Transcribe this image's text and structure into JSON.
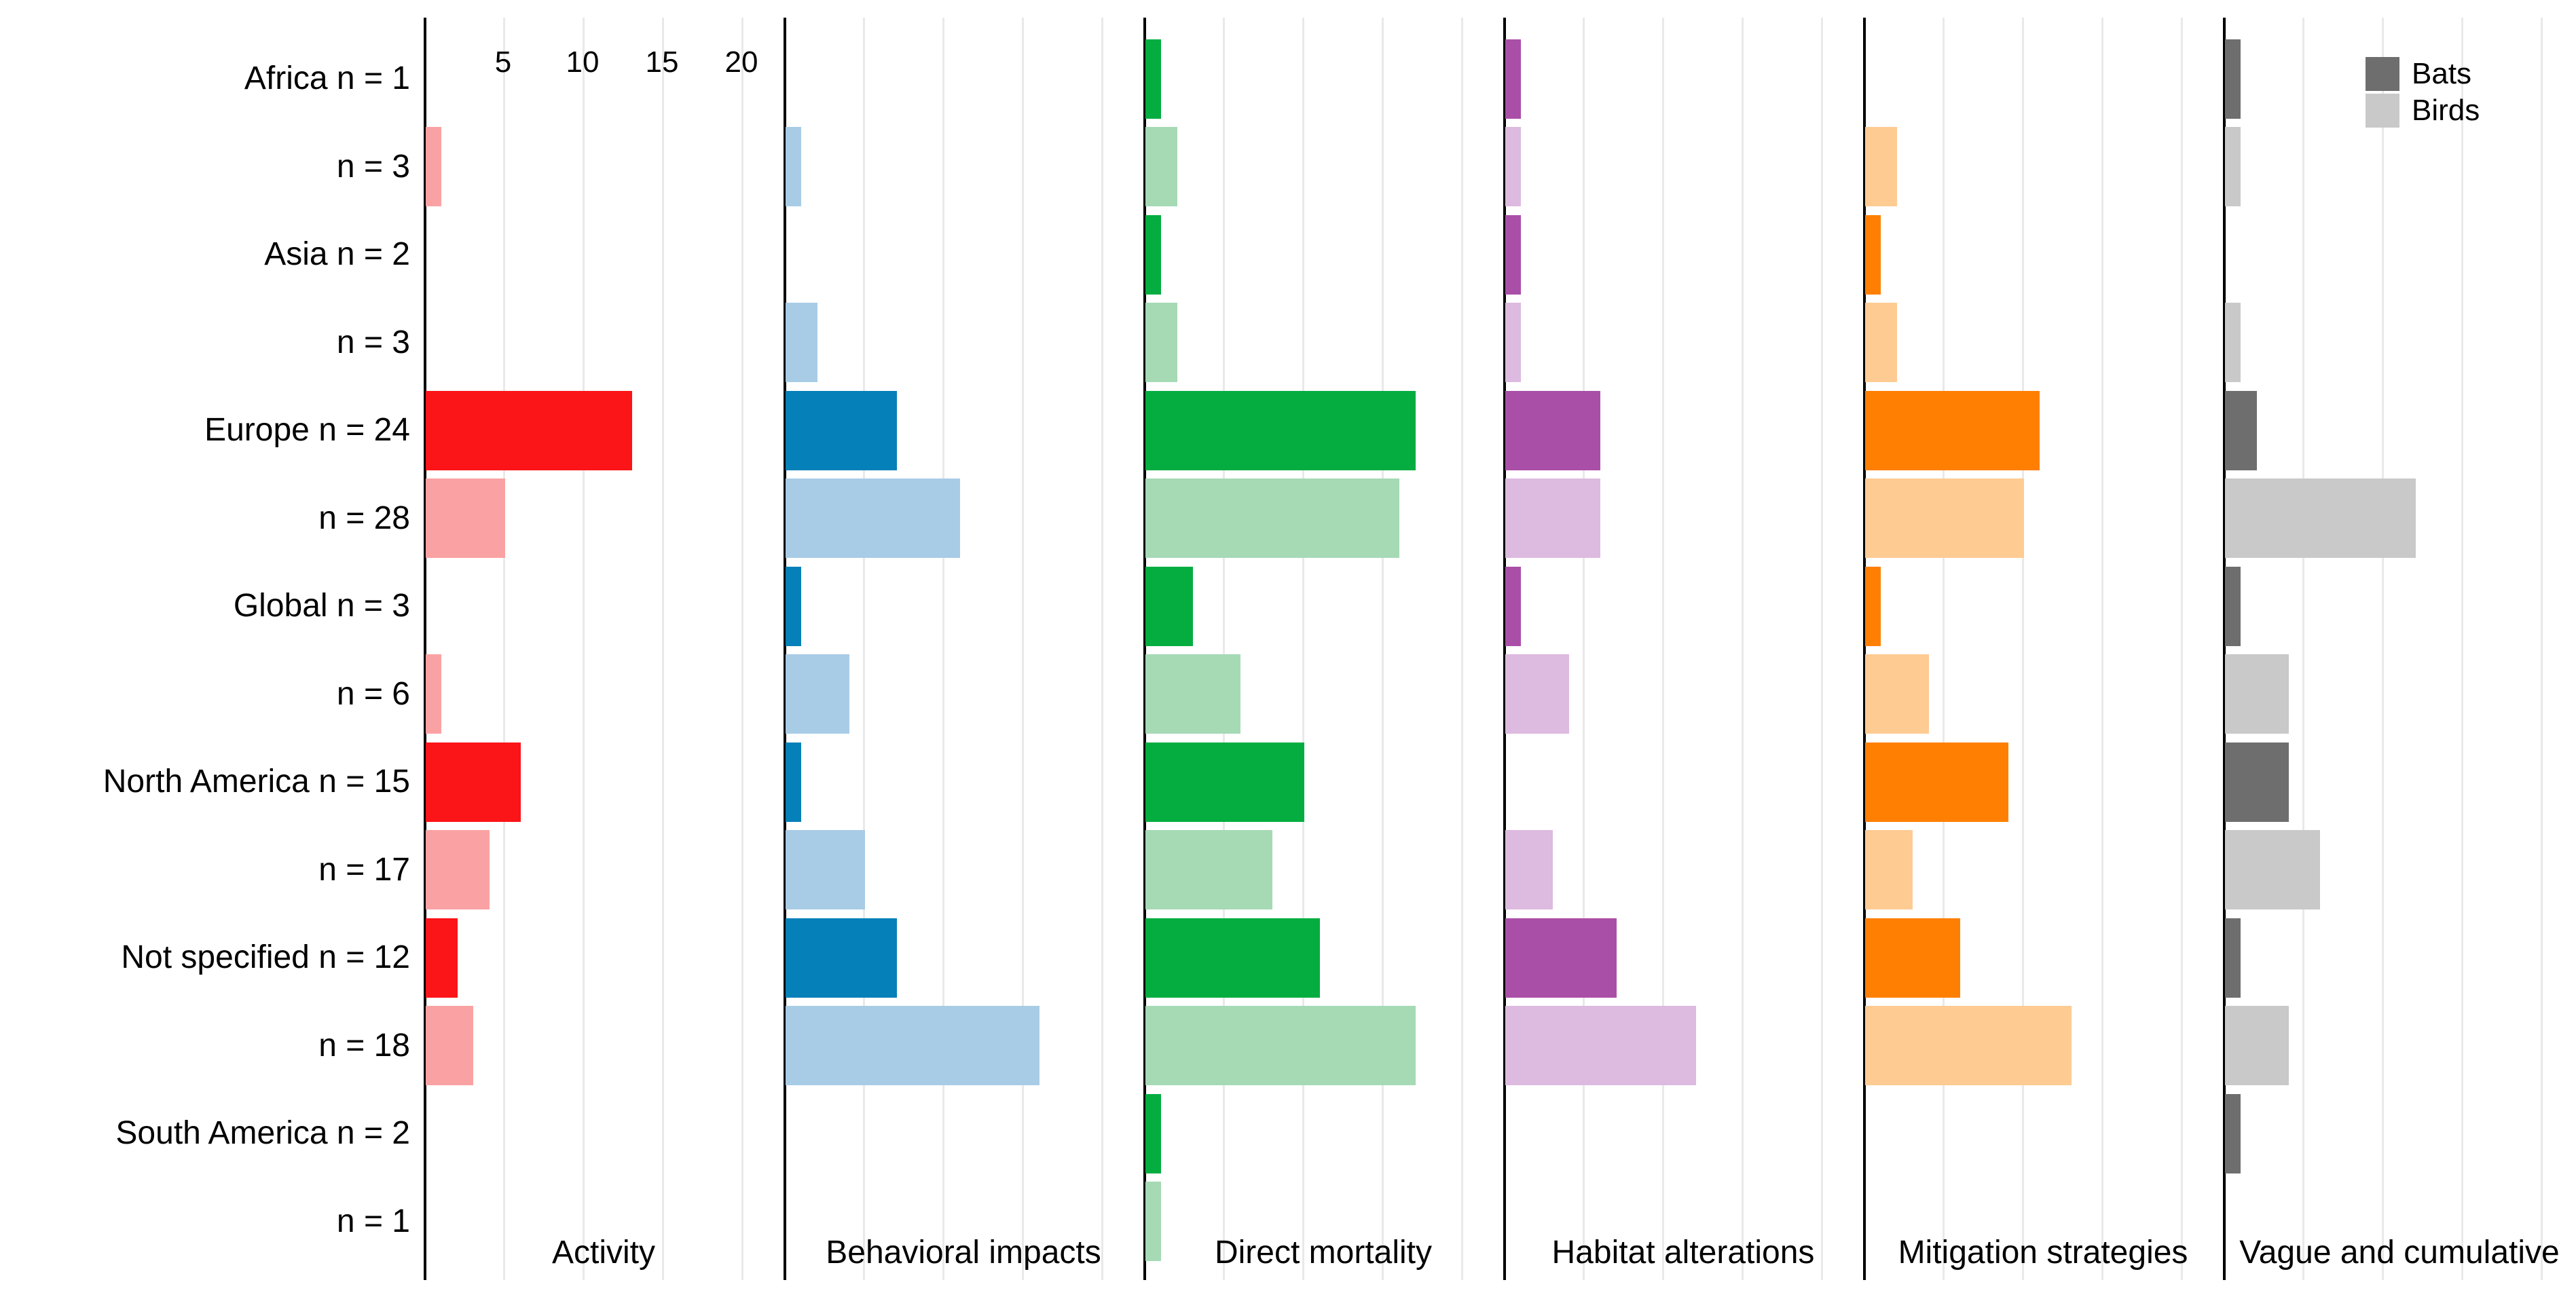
{
  "figure": {
    "background": "#FFFFFF"
  },
  "legend": {
    "items": [
      {
        "label": "Bats",
        "color": "#6E6E6E"
      },
      {
        "label": "Birds",
        "color": "#C9C9C9"
      }
    ]
  },
  "chart_data": {
    "type": "bar",
    "orientation": "horizontal",
    "faceted": true,
    "grid": true,
    "legend_position": "top-right",
    "x_ticks": [
      5,
      10,
      15,
      20
    ],
    "x_range": [
      0,
      22.6
    ],
    "grid_color": "#E9E9E9",
    "axis_color": "#000000",
    "regions": [
      "Africa",
      "Asia",
      "Europe",
      "Global",
      "North America",
      "Not specified",
      "South America"
    ],
    "row_labels": [
      "Africa n = 1",
      "n = 3",
      "Asia n = 2",
      "n = 3",
      "Europe n = 24",
      "n = 28",
      "Global n = 3",
      "n = 6",
      "North America n = 15",
      "n = 17",
      "Not specified n = 12",
      "n = 18",
      "South America n = 2",
      "n = 1"
    ],
    "row_taxa": [
      "bats",
      "birds",
      "bats",
      "birds",
      "bats",
      "birds",
      "bats",
      "birds",
      "bats",
      "birds",
      "bats",
      "birds",
      "bats",
      "birds"
    ],
    "panels": [
      {
        "label": "Activity",
        "bats_color": "#FB1418",
        "birds_color": "#FAA2A3",
        "values": [
          0,
          1,
          0,
          0,
          13,
          5,
          0,
          1,
          6,
          4,
          2,
          3,
          0,
          0
        ]
      },
      {
        "label": "Behavioral impacts",
        "bats_color": "#0580B8",
        "birds_color": "#A8CCE6",
        "values": [
          0,
          1,
          0,
          2,
          7,
          11,
          1,
          4,
          1,
          5,
          7,
          16,
          0,
          0
        ]
      },
      {
        "label": "Direct mortality",
        "bats_color": "#05AD41",
        "birds_color": "#A5DAB5",
        "values": [
          1,
          2,
          1,
          2,
          17,
          16,
          3,
          6,
          10,
          8,
          11,
          17,
          1,
          1
        ]
      },
      {
        "label": "Habitat alterations",
        "bats_color": "#AA4FA8",
        "birds_color": "#DDBADF",
        "values": [
          1,
          1,
          1,
          1,
          6,
          6,
          1,
          4,
          0,
          3,
          7,
          12,
          0,
          0
        ]
      },
      {
        "label": "Mitigation strategies",
        "bats_color": "#FF7F03",
        "birds_color": "#FECB93",
        "values": [
          0,
          2,
          1,
          2,
          11,
          10,
          1,
          4,
          9,
          3,
          6,
          13,
          0,
          0
        ]
      },
      {
        "label": "Vague and cumulative",
        "bats_color": "#6E6E6E",
        "birds_color": "#C9C9C9",
        "values": [
          1,
          1,
          0,
          1,
          2,
          12,
          1,
          4,
          4,
          6,
          1,
          4,
          1,
          0
        ]
      }
    ]
  }
}
